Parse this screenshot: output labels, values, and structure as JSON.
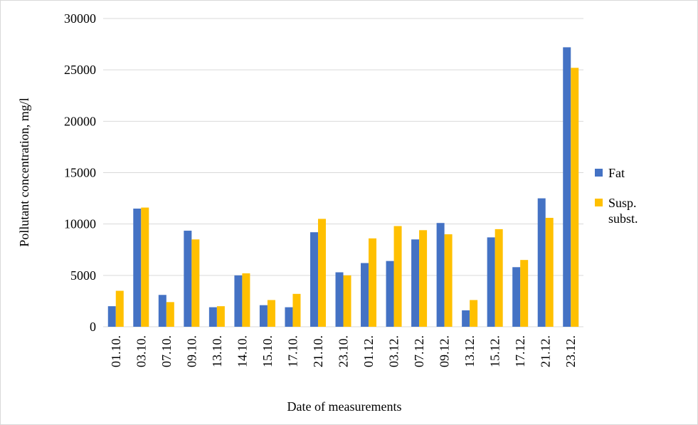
{
  "chart_data": {
    "type": "bar",
    "x_label": "Date of measurements",
    "y_label": "Pollutant concentration, mg/l",
    "categories": [
      "01.10.",
      "03.10.",
      "07.10.",
      "09.10.",
      "13.10.",
      "14.10.",
      "15.10.",
      "17.10.",
      "21.10.",
      "23.10.",
      "01.12.",
      "03.12.",
      "07.12.",
      "09.12.",
      "13.12.",
      "15.12.",
      "17.12.",
      "21.12.",
      "23.12."
    ],
    "series": [
      {
        "name": "Fat",
        "color": "#4472c4",
        "values": [
          2000,
          11500,
          3100,
          9350,
          1900,
          5000,
          2100,
          1900,
          9200,
          5300,
          6200,
          6400,
          8500,
          10100,
          1600,
          8700,
          5800,
          12500,
          27200
        ]
      },
      {
        "name": "Susp. subst.",
        "color": "#ffc000",
        "values": [
          3500,
          11600,
          2400,
          8500,
          2000,
          5200,
          2600,
          3200,
          10500,
          5000,
          8600,
          9800,
          9400,
          9000,
          2600,
          9500,
          6500,
          10600,
          25200
        ]
      }
    ],
    "ylim": [
      0,
      30000
    ],
    "yticks": [
      0,
      5000,
      10000,
      15000,
      20000,
      25000,
      30000
    ],
    "grid": true
  }
}
